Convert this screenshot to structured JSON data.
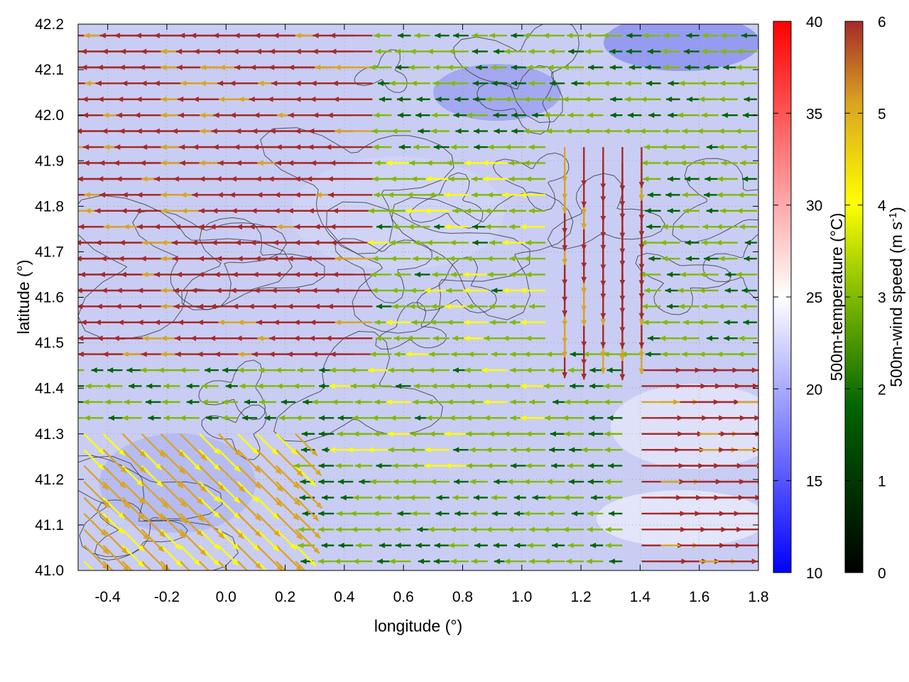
{
  "chart_data": {
    "type": "vector-field",
    "xlabel": "longitude (°)",
    "ylabel": "latitude (°)",
    "xlim": [
      -0.5,
      1.8
    ],
    "ylim": [
      41.0,
      42.2
    ],
    "xticks": [
      "-0.4",
      "-0.2",
      "0.0",
      "0.2",
      "0.4",
      "0.6",
      "0.8",
      "1.0",
      "1.2",
      "1.4",
      "1.6",
      "1.8"
    ],
    "yticks": [
      "41.0",
      "41.1",
      "41.2",
      "41.3",
      "41.4",
      "41.5",
      "41.6",
      "41.7",
      "41.8",
      "41.9",
      "42.0",
      "42.1",
      "42.2"
    ],
    "grid": true,
    "background_field": {
      "name": "500m-temperature",
      "colorbar_label": "500m-temperature (°C)",
      "range": [
        10,
        40
      ],
      "ticks": [
        "10",
        "15",
        "20",
        "25",
        "30",
        "35",
        "40"
      ],
      "colors": [
        "#0000ff",
        "#ffffff",
        "#ff0000"
      ]
    },
    "vectors": {
      "name": "500m-wind speed",
      "colorbar_label_main": "500m-wind speed (m s",
      "colorbar_label_sup": "-1",
      "colorbar_label_end": ")",
      "range": [
        0,
        6
      ],
      "ticks": [
        "0",
        "1",
        "2",
        "3",
        "4",
        "5",
        "6"
      ],
      "colors": [
        "#000000",
        "#006400",
        "#7fba00",
        "#ffff00",
        "#daa520",
        "#a52a2a"
      ],
      "flow_regions": [
        {
          "region": "west",
          "lon": [
            -0.5,
            0.5
          ],
          "lat": [
            41.45,
            42.2
          ],
          "direction": "westward",
          "speed": 6
        },
        {
          "region": "center",
          "lon": [
            0.4,
            1.1
          ],
          "lat": [
            41.2,
            41.9
          ],
          "direction": "westward",
          "speed": 2.5
        },
        {
          "region": "central-east",
          "lon": [
            1.1,
            1.45
          ],
          "lat": [
            41.5,
            41.95
          ],
          "direction": "southward",
          "speed": 5.5
        },
        {
          "region": "southeast",
          "lon": [
            1.4,
            1.8
          ],
          "lat": [
            41.0,
            41.45
          ],
          "direction": "eastward",
          "speed": 6
        },
        {
          "region": "southwest",
          "lon": [
            -0.5,
            0.3
          ],
          "lat": [
            41.0,
            41.3
          ],
          "direction": "southeastward",
          "speed": 4.5
        }
      ]
    },
    "contours": {
      "color": "#333333",
      "description": "terrain contours"
    }
  }
}
